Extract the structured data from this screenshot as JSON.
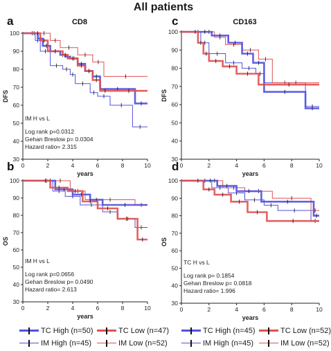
{
  "title": "All patients",
  "chart_data": [
    {
      "panel": "a",
      "type": "line",
      "subtitle": "CD8",
      "ylabel": "DFS",
      "xlabel": "years",
      "xlim": [
        0,
        10
      ],
      "ylim": [
        30,
        100
      ],
      "xticks": [
        0,
        2,
        4,
        6,
        8,
        10
      ],
      "yticks": [
        30,
        40,
        50,
        60,
        70,
        80,
        90,
        100
      ],
      "grid": false,
      "annotation": [
        "IM H vs L",
        "Log rank p=0.0312",
        "Gehan Breslow p= 0.0304",
        "Hazard ratio= 2.315"
      ],
      "series": [
        {
          "name": "TC High (n=50)",
          "color": "#5050e0",
          "width": 3,
          "x": [
            0,
            0.6,
            1.2,
            1.6,
            2.2,
            3.0,
            3.4,
            3.8,
            4.4,
            5.0,
            5.6,
            6.2,
            9.0,
            10
          ],
          "y": [
            100,
            100,
            97,
            93,
            90,
            88,
            87,
            86,
            83,
            79,
            76,
            69,
            61,
            61
          ]
        },
        {
          "name": "TC Low (n=47)",
          "color": "#e05050",
          "width": 3,
          "x": [
            0,
            1.0,
            1.4,
            2.0,
            3.2,
            3.6,
            4.4,
            5.0,
            5.6,
            6.2,
            7.0,
            10
          ],
          "y": [
            100,
            100,
            96,
            90,
            88,
            86,
            82,
            79,
            74,
            68,
            68,
            68
          ]
        },
        {
          "name": "IM High (n=45)",
          "color": "#5050e0",
          "width": 1,
          "x": [
            0,
            0.5,
            1.0,
            1.4,
            2.2,
            3.2,
            3.8,
            4.2,
            5.4,
            6.0,
            7.0,
            8.8,
            10
          ],
          "y": [
            100,
            100,
            96,
            90,
            82,
            80,
            77,
            72,
            67,
            65,
            60,
            48,
            48
          ]
        },
        {
          "name": "IM Low (n=52)",
          "color": "#e05050",
          "width": 1,
          "x": [
            0,
            1.2,
            2.2,
            3.0,
            4.4,
            5.6,
            6.5,
            10
          ],
          "y": [
            100,
            100,
            96,
            92,
            88,
            84,
            76,
            76
          ]
        }
      ]
    },
    {
      "panel": "b",
      "type": "line",
      "subtitle": "",
      "ylabel": "OS",
      "xlabel": "years",
      "xlim": [
        0,
        10
      ],
      "ylim": [
        30,
        100
      ],
      "xticks": [
        0,
        2,
        4,
        6,
        8,
        10
      ],
      "yticks": [
        30,
        40,
        50,
        60,
        70,
        80,
        90,
        100
      ],
      "grid": false,
      "annotation": [
        "IM H vs L",
        "Log rank p=0.0656",
        "Gehan Breslow p= 0.0490",
        "Hazard ratio= 2.613"
      ],
      "series": [
        {
          "name": "TC High (n=50)",
          "color": "#5050e0",
          "width": 3,
          "x": [
            0,
            1.8,
            2.6,
            4.0,
            5.4,
            6.4,
            10
          ],
          "y": [
            100,
            100,
            95,
            92,
            89,
            86,
            86
          ]
        },
        {
          "name": "TC Low (n=47)",
          "color": "#e05050",
          "width": 3,
          "x": [
            0,
            1.4,
            2.2,
            3.6,
            4.8,
            6.0,
            7.6,
            9.2,
            10
          ],
          "y": [
            100,
            100,
            96,
            94,
            88,
            84,
            78,
            66,
            66
          ]
        },
        {
          "name": "IM High (n=45)",
          "color": "#5050e0",
          "width": 1,
          "x": [
            0,
            1.4,
            2.4,
            3.4,
            4.6,
            6.4,
            7.6,
            9.0,
            10
          ],
          "y": [
            100,
            100,
            94,
            91,
            86,
            82,
            78,
            73,
            73
          ]
        },
        {
          "name": "IM Low (n=52)",
          "color": "#e05050",
          "width": 1,
          "x": [
            0,
            2.2,
            3.8,
            5.0,
            9.0,
            10
          ],
          "y": [
            100,
            100,
            94,
            89,
            86,
            86
          ]
        }
      ]
    },
    {
      "panel": "c",
      "type": "line",
      "subtitle": "CD163",
      "ylabel": "DFS",
      "xlabel": "years",
      "xlim": [
        0,
        10
      ],
      "ylim": [
        30,
        100
      ],
      "xticks": [
        0,
        2,
        4,
        6,
        8,
        10
      ],
      "yticks": [
        30,
        40,
        50,
        60,
        70,
        80,
        90,
        100
      ],
      "grid": false,
      "annotation": [],
      "series": [
        {
          "name": "TC High (n=45)",
          "color": "#5050e0",
          "width": 3,
          "x": [
            0,
            1.2,
            2.2,
            3.4,
            4.4,
            5.2,
            6.0,
            9.0,
            10
          ],
          "y": [
            100,
            100,
            98,
            94,
            88,
            83,
            67,
            58,
            58
          ]
        },
        {
          "name": "TC Low (n=52)",
          "color": "#e05050",
          "width": 3,
          "x": [
            0,
            0.8,
            1.2,
            1.6,
            2.0,
            3.0,
            4.0,
            5.6,
            10
          ],
          "y": [
            100,
            100,
            94,
            88,
            84,
            81,
            77,
            71,
            71
          ]
        },
        {
          "name": "IM High (n=45)",
          "color": "#5050e0",
          "width": 1,
          "x": [
            0,
            1.0,
            1.4,
            2.0,
            3.2,
            4.4,
            5.4,
            6.0,
            9.0,
            10
          ],
          "y": [
            100,
            100,
            94,
            88,
            83,
            80,
            77,
            72,
            59,
            59
          ]
        },
        {
          "name": "IM Low (n=52)",
          "color": "#e05050",
          "width": 1,
          "x": [
            0,
            1.6,
            2.4,
            3.2,
            4.4,
            5.6,
            6.6,
            10
          ],
          "y": [
            100,
            100,
            97,
            93,
            90,
            85,
            72,
            72
          ]
        }
      ]
    },
    {
      "panel": "d",
      "type": "line",
      "subtitle": "",
      "ylabel": "OS",
      "xlabel": "years",
      "xlim": [
        0,
        10
      ],
      "ylim": [
        30,
        100
      ],
      "xticks": [
        0,
        2,
        4,
        6,
        8,
        10
      ],
      "yticks": [
        30,
        40,
        50,
        60,
        70,
        80,
        90,
        100
      ],
      "grid": false,
      "annotation": [
        "TC H vs L",
        "Log rank p= 0.1854",
        "Gehan Breslow p= 0.0818",
        "Hazard ratio= 1.996"
      ],
      "series": [
        {
          "name": "TC High (n=45)",
          "color": "#5050e0",
          "width": 3,
          "x": [
            0,
            1.6,
            2.6,
            4.0,
            5.8,
            9.6,
            10
          ],
          "y": [
            100,
            100,
            97,
            94,
            88,
            80,
            80
          ]
        },
        {
          "name": "TC Low (n=52)",
          "color": "#e05050",
          "width": 3,
          "x": [
            0,
            0.8,
            1.6,
            2.4,
            3.6,
            4.8,
            6.2,
            10
          ],
          "y": [
            100,
            100,
            95,
            92,
            88,
            82,
            77,
            77
          ]
        },
        {
          "name": "IM High (n=45)",
          "color": "#5050e0",
          "width": 1,
          "x": [
            0,
            1.2,
            2.2,
            3.4,
            4.6,
            6.0,
            7.0,
            9.4,
            10
          ],
          "y": [
            100,
            100,
            96,
            93,
            89,
            86,
            83,
            77,
            77
          ]
        },
        {
          "name": "IM Low (n=52)",
          "color": "#e05050",
          "width": 1,
          "x": [
            0,
            1.8,
            3.0,
            4.6,
            6.6,
            9.4,
            10
          ],
          "y": [
            100,
            100,
            96,
            94,
            90,
            83,
            83
          ]
        }
      ]
    }
  ],
  "legends": [
    {
      "items": [
        {
          "label": "TC High (n=50)",
          "color": "#5050e0",
          "width": 3
        },
        {
          "label": "TC Low (n=47)",
          "color": "#e05050",
          "width": 3
        },
        {
          "label": "IM High (n=45)",
          "color": "#5050e0",
          "width": 1
        },
        {
          "label": "IM Low (n=52)",
          "color": "#e05050",
          "width": 1
        }
      ]
    },
    {
      "items": [
        {
          "label": "TC High (n=45)",
          "color": "#5050e0",
          "width": 3
        },
        {
          "label": "TC Low (n=52)",
          "color": "#e05050",
          "width": 3
        },
        {
          "label": "IM High (n=45)",
          "color": "#5050e0",
          "width": 1
        },
        {
          "label": "IM Low (n=52)",
          "color": "#e05050",
          "width": 1
        }
      ]
    }
  ]
}
